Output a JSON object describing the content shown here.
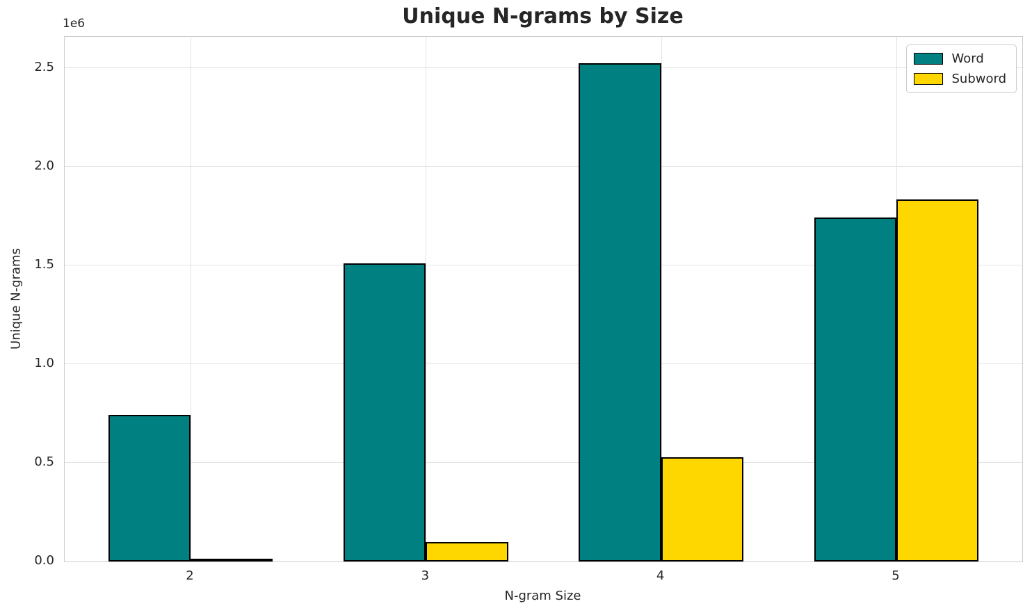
{
  "chart_data": {
    "type": "bar",
    "title": "Unique N-grams by Size",
    "xlabel": "N-gram Size",
    "ylabel": "Unique N-grams",
    "y_offset_label": "1e6",
    "categories": [
      "2",
      "3",
      "4",
      "5"
    ],
    "series": [
      {
        "name": "Word",
        "color": "#008080",
        "values": [
          745000,
          1510000,
          2525000,
          1745000
        ]
      },
      {
        "name": "Subword",
        "color": "#FFD700",
        "values": [
          14000,
          97000,
          530000,
          1835000
        ]
      }
    ],
    "bar_edge_color": "#000000",
    "ylim": [
      0,
      2660000
    ],
    "ytick_values": [
      0,
      500000,
      1000000,
      1500000,
      2000000,
      2500000
    ],
    "ytick_labels": [
      "0.0",
      "0.5",
      "1.0",
      "1.5",
      "2.0",
      "2.5"
    ],
    "grid": true,
    "legend_position": "upper right",
    "text_color": "#262626",
    "grid_color": "#e3e3e3",
    "spine_color": "#cccccc",
    "background_color": "#ffffff"
  }
}
